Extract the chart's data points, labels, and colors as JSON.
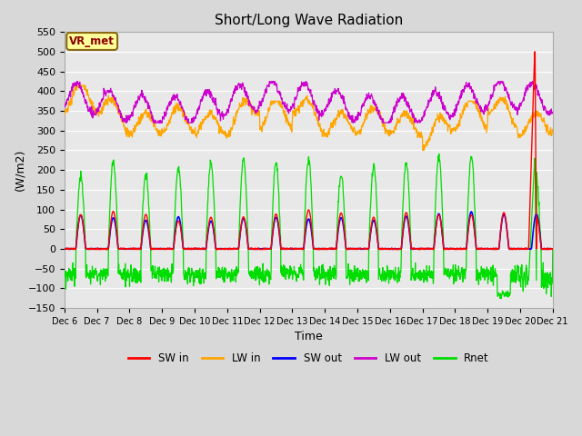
{
  "title": "Short/Long Wave Radiation",
  "ylabel": "(W/m2)",
  "xlabel": "Time",
  "ylim": [
    -150,
    550
  ],
  "yticks": [
    -150,
    -100,
    -50,
    0,
    50,
    100,
    150,
    200,
    250,
    300,
    350,
    400,
    450,
    500,
    550
  ],
  "x_labels": [
    "Dec 6",
    "Dec 7",
    "Dec 8",
    "Dec 9",
    "Dec 10",
    "Dec 11",
    "Dec 12",
    "Dec 13",
    "Dec 14",
    "Dec 15",
    "Dec 16",
    "Dec 17",
    "Dec 18",
    "Dec 19",
    "Dec 20",
    "Dec 21"
  ],
  "annotation_label": "VR_met",
  "colors": {
    "SW_in": "#ff0000",
    "LW_in": "#ffa500",
    "SW_out": "#0000ff",
    "LW_out": "#cc00cc",
    "Rnet": "#00dd00"
  },
  "background_color": "#e8e8e8",
  "grid_color": "#ffffff",
  "title_fontsize": 11
}
